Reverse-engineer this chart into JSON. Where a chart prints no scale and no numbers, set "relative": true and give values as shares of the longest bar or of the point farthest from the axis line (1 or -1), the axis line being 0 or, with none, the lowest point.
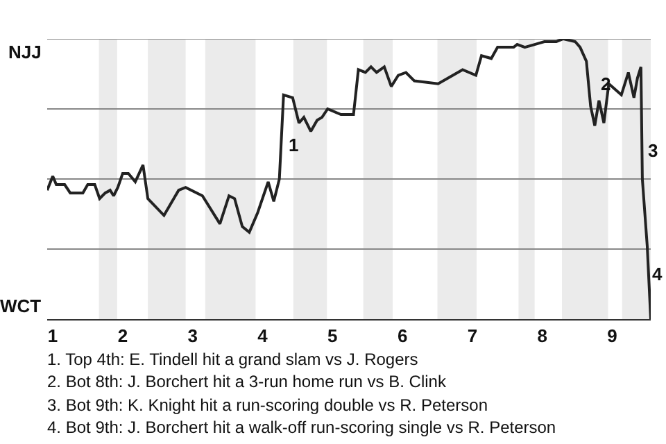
{
  "chart_data": {
    "type": "line",
    "x": [
      0.92,
      1.0,
      1.05,
      1.17,
      1.25,
      1.43,
      1.5,
      1.6,
      1.67,
      1.75,
      1.82,
      1.87,
      1.93,
      2.0,
      2.08,
      2.18,
      2.29,
      2.36,
      2.59,
      2.8,
      2.9,
      3.14,
      3.39,
      3.52,
      3.6,
      3.71,
      3.81,
      3.93,
      4.08,
      4.16,
      4.24,
      4.3,
      4.43,
      4.52,
      4.59,
      4.69,
      4.78,
      4.85,
      4.93,
      5.12,
      5.3,
      5.37,
      5.47,
      5.55,
      5.63,
      5.74,
      5.84,
      5.94,
      6.05,
      6.17,
      6.51,
      6.86,
      7.05,
      7.13,
      7.27,
      7.36,
      7.59,
      7.64,
      7.75,
      7.89,
      8.03,
      8.2,
      8.3,
      8.47,
      8.54,
      8.63,
      8.69,
      8.75,
      8.81,
      8.88,
      8.95,
      9.13,
      9.23,
      9.31,
      9.36,
      9.41,
      9.43,
      9.5,
      9.55
    ],
    "series": [
      {
        "color": "#222222",
        "values": [
          0.46,
          0.51,
          0.48,
          0.48,
          0.45,
          0.45,
          0.48,
          0.48,
          0.43,
          0.45,
          0.46,
          0.44,
          0.47,
          0.52,
          0.52,
          0.49,
          0.55,
          0.43,
          0.37,
          0.46,
          0.47,
          0.44,
          0.34,
          0.44,
          0.43,
          0.33,
          0.31,
          0.38,
          0.49,
          0.42,
          0.5,
          0.8,
          0.79,
          0.7,
          0.72,
          0.67,
          0.71,
          0.72,
          0.75,
          0.73,
          0.73,
          0.89,
          0.88,
          0.9,
          0.88,
          0.9,
          0.83,
          0.87,
          0.88,
          0.85,
          0.84,
          0.89,
          0.87,
          0.94,
          0.93,
          0.97,
          0.97,
          0.98,
          0.97,
          0.98,
          0.99,
          0.99,
          1.0,
          0.99,
          0.97,
          0.92,
          0.76,
          0.69,
          0.78,
          0.7,
          0.84,
          0.8,
          0.88,
          0.79,
          0.86,
          0.9,
          0.5,
          0.26,
          0.0
        ]
      }
    ],
    "xlim": [
      0.92,
      9.55
    ],
    "xticks": [
      1,
      2,
      3,
      4,
      5,
      6,
      7,
      8,
      9
    ],
    "relative": true,
    "line_style": "solid",
    "ref_lines": [
      {
        "axis": "y",
        "value": 0.25,
        "color": "#888888"
      },
      {
        "axis": "y",
        "value": 0.5,
        "color": "#888888"
      },
      {
        "axis": "y",
        "value": 0.75,
        "color": "#888888"
      },
      {
        "axis": "y",
        "value": 1,
        "color": "#888888"
      }
    ],
    "bands": [
      {
        "axis": "x",
        "from": 1.66,
        "to": 1.92,
        "color": "#ebebeb"
      },
      {
        "axis": "x",
        "from": 2.36,
        "to": 2.9,
        "color": "#ebebeb"
      },
      {
        "axis": "x",
        "from": 3.18,
        "to": 3.9,
        "color": "#ebebeb"
      },
      {
        "axis": "x",
        "from": 4.44,
        "to": 4.92,
        "color": "#ebebeb"
      },
      {
        "axis": "x",
        "from": 5.44,
        "to": 5.86,
        "color": "#ebebeb"
      },
      {
        "axis": "x",
        "from": 6.5,
        "to": 7.06,
        "color": "#ebebeb"
      },
      {
        "axis": "x",
        "from": 7.66,
        "to": 7.89,
        "color": "#ebebeb"
      },
      {
        "axis": "x",
        "from": 8.28,
        "to": 8.94,
        "color": "#ebebeb"
      },
      {
        "axis": "x",
        "from": 9.14,
        "to": 9.55,
        "color": "#ebebeb"
      }
    ],
    "annotations": [
      "NJJ",
      "WCT",
      {
        "text": "1",
        "x": 4.3,
        "y": 0.62
      },
      {
        "text": "2",
        "x": 8.75,
        "y": 0.84
      },
      {
        "text": "3",
        "x": 9.43,
        "y": 0.6
      },
      {
        "text": "4",
        "x": 9.5,
        "y": 0.16
      },
      "1. Top 4th: E. Tindell hit a grand slam vs J. Rogers",
      "2. Bot 8th: J. Borchert hit a 3-run home run vs B. Clink",
      "3. Bot 9th: K. Knight hit a run-scoring double vs R. Peterson",
      "4. Bot 9th: J. Borchert hit a walk-off run-scoring single vs R. Peterson"
    ]
  }
}
